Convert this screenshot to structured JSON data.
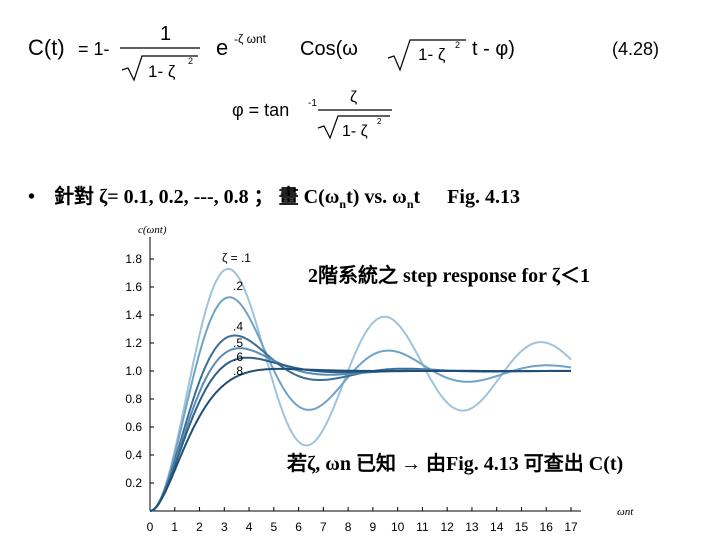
{
  "equation": {
    "C_label": "C(t)",
    "one_minus": "= 1-",
    "num": "1",
    "sqrt_term": "1- ζ",
    "sq": "2",
    "exp_e": "e",
    "exp_pow": "-ζ ωnt",
    "cos_part": "Cos(ω",
    "sqrt_term2": "1- ζ",
    "t_part": "t  -  φ)",
    "eq_number": "(4.28)",
    "phi_label": "φ = tan",
    "inv": "-1",
    "zeta": "ζ",
    "sqrt_term3": "1- ζ"
  },
  "bullet": {
    "dot": "•",
    "text_a": "針對 ζ= 0.1, 0.2, ---, 0.8 ； 畫 C(ω",
    "sub_n1": "n",
    "text_b": "t)  vs. ω",
    "sub_n2": "n",
    "text_c": "t",
    "fig_ref": "Fig. 4.13"
  },
  "overlays": {
    "title": "2階系統之 step response   for ζ＜1",
    "note": "若ζ, ωn 已知 → 由Fig. 4.13 可查出 C(t)"
  },
  "chart_data": {
    "type": "line",
    "ylabel": "c(ωnt)",
    "xlabel": "ωnt",
    "xlim": [
      0,
      17
    ],
    "ylim": [
      0,
      1.9
    ],
    "xticks": [
      "0",
      "1",
      "2",
      "3",
      "4",
      "5",
      "6",
      "7",
      "8",
      "9",
      "10",
      "11",
      "12",
      "13",
      "14",
      "15",
      "16",
      "17"
    ],
    "yticks": [
      "0.2",
      "0.4",
      "0.6",
      "0.8",
      "1.0",
      "1.2",
      "1.4",
      "1.6",
      "1.8"
    ],
    "ytick_values": [
      0.2,
      0.4,
      0.6,
      0.8,
      1.0,
      1.2,
      1.4,
      1.6,
      1.8
    ],
    "series": [
      {
        "name": "ζ = .1",
        "zeta": 0.1,
        "color": "#9fc3dd"
      },
      {
        "name": ".2",
        "zeta": 0.2,
        "color": "#6fa3c6"
      },
      {
        "name": ".4",
        "zeta": 0.4,
        "color": "#3d6f94"
      },
      {
        "name": ".5",
        "zeta": 0.5,
        "color": "#5a8db3"
      },
      {
        "name": ".6",
        "zeta": 0.6,
        "color": "#2f5f86"
      },
      {
        "name": ".8",
        "zeta": 0.8,
        "color": "#1f4e79"
      }
    ],
    "curve_labels": [
      "ζ = .1",
      ".2",
      ".4",
      ".5",
      ".6",
      ".8"
    ]
  }
}
